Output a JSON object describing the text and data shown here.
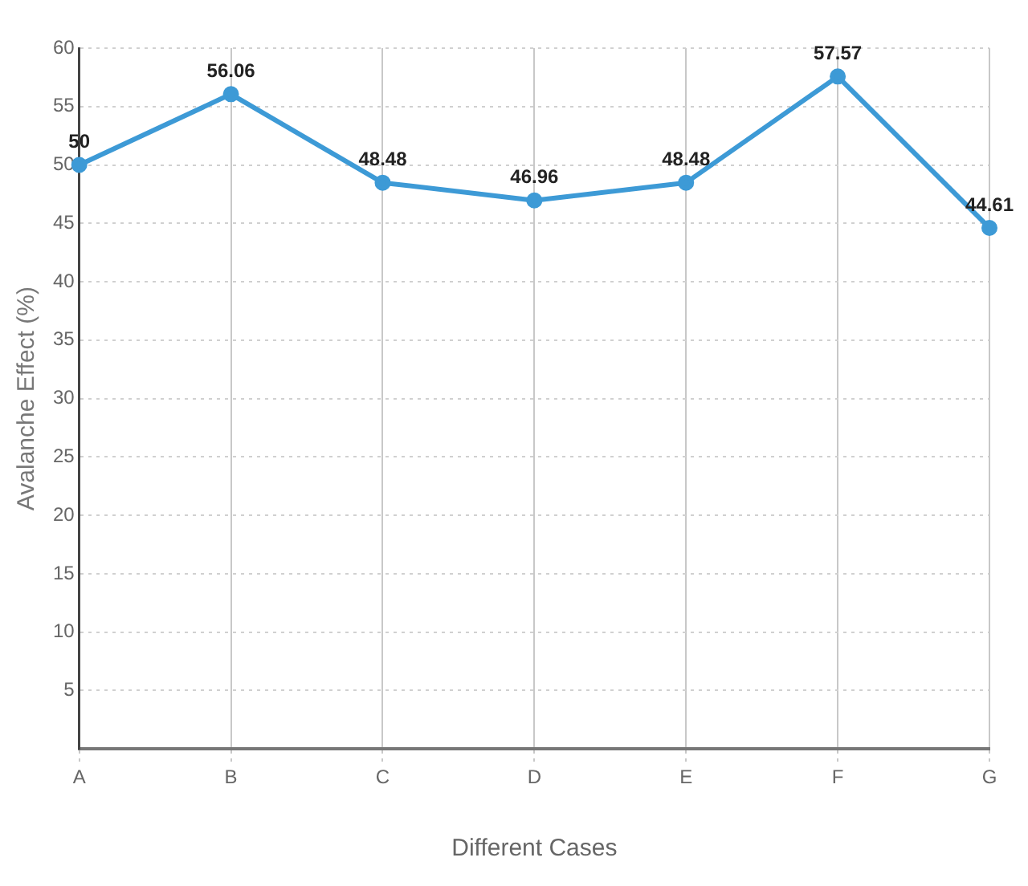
{
  "chart_data": {
    "type": "line",
    "xlabel": "Different Cases",
    "ylabel": "Avalanche Effect (%)",
    "categories": [
      "A",
      "B",
      "C",
      "D",
      "E",
      "F",
      "G"
    ],
    "series": [
      {
        "color": "#3d9ad6",
        "values": [
          50,
          56.06,
          48.48,
          46.96,
          48.48,
          57.57,
          44.61
        ]
      }
    ],
    "ylim": [
      0,
      60
    ],
    "yticks": [
      {
        "value": 0,
        "label": null
      },
      5,
      10,
      15,
      20,
      25,
      30,
      35,
      40,
      45,
      50,
      55,
      60
    ],
    "grid": true,
    "marker": "circle",
    "line_style": "solid",
    "data_labels": true,
    "legend": false
  }
}
